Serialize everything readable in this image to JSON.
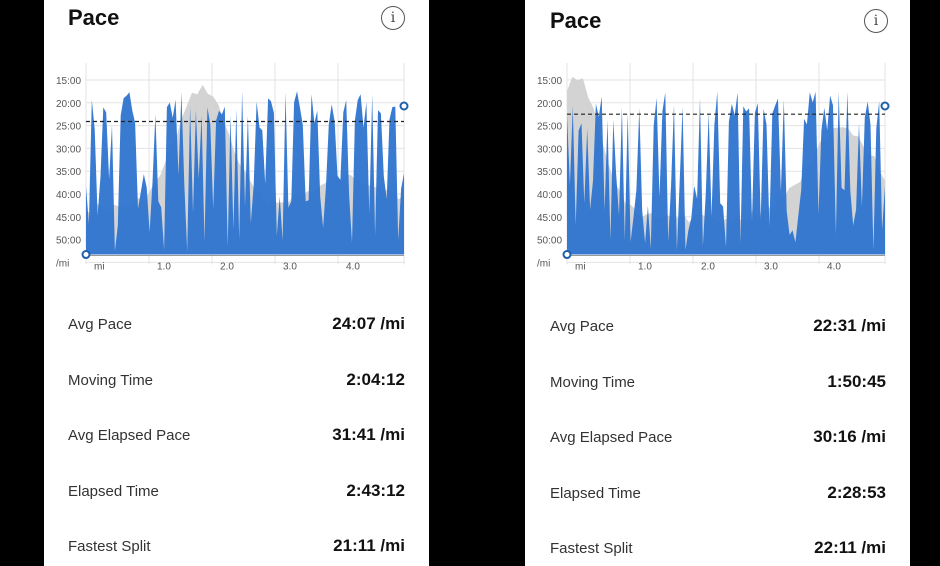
{
  "panels": [
    {
      "title": "Pace",
      "info_icon": "info-icon",
      "chart_data": {
        "type": "area",
        "y_tick_labels": [
          "15:00",
          "20:00",
          "25:00",
          "30:00",
          "35:00",
          "40:00",
          "45:00",
          "50:00",
          "/mi"
        ],
        "x_tick_labels": [
          "mi",
          "1.0",
          "2.0",
          "3.0",
          "4.0"
        ],
        "avg_line": "24:07",
        "colors": {
          "pace": "#2f74d0",
          "elevation": "#d3d3d3",
          "avg": "#222222",
          "marker": "#1f5fae"
        }
      },
      "stats": [
        {
          "label": "Avg Pace",
          "value": "24:07 /mi"
        },
        {
          "label": "Moving Time",
          "value": "2:04:12"
        },
        {
          "label": "Avg Elapsed Pace",
          "value": "31:41 /mi"
        },
        {
          "label": "Elapsed Time",
          "value": "2:43:12"
        },
        {
          "label": "Fastest Split",
          "value": "21:11 /mi"
        }
      ]
    },
    {
      "title": "Pace",
      "info_icon": "info-icon",
      "chart_data": {
        "type": "area",
        "y_tick_labels": [
          "15:00",
          "20:00",
          "25:00",
          "30:00",
          "35:00",
          "40:00",
          "45:00",
          "50:00",
          "/mi"
        ],
        "x_tick_labels": [
          "mi",
          "1.0",
          "2.0",
          "3.0",
          "4.0"
        ],
        "avg_line": "22:31",
        "colors": {
          "pace": "#2f74d0",
          "elevation": "#d3d3d3",
          "avg": "#222222",
          "marker": "#1f5fae"
        }
      },
      "stats": [
        {
          "label": "Avg Pace",
          "value": "22:31 /mi"
        },
        {
          "label": "Moving Time",
          "value": "1:50:45"
        },
        {
          "label": "Avg Elapsed Pace",
          "value": "30:16 /mi"
        },
        {
          "label": "Elapsed Time",
          "value": "2:28:53"
        },
        {
          "label": "Fastest Split",
          "value": "22:11 /mi"
        }
      ]
    }
  ]
}
